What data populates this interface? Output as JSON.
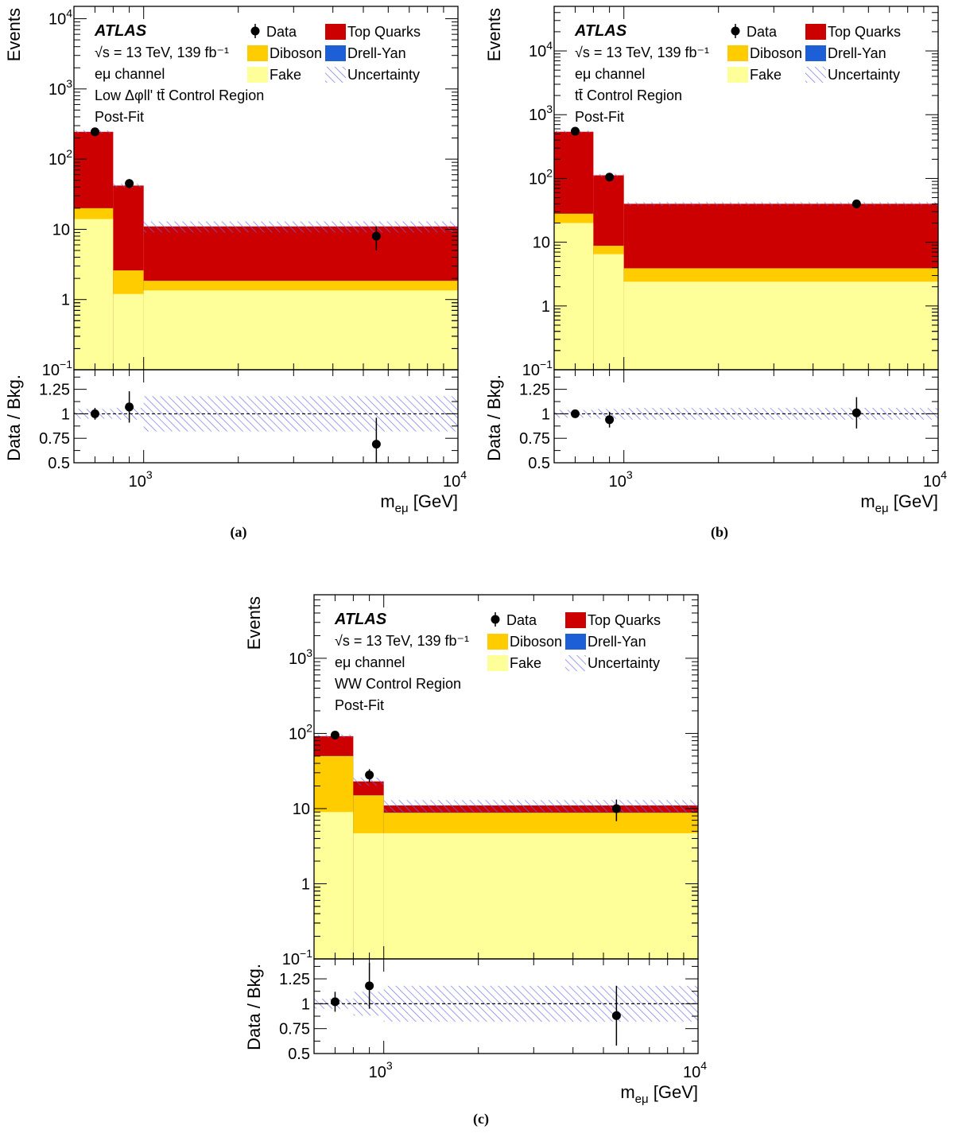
{
  "legend": {
    "data": "Data",
    "top": "Top Quarks",
    "diboson": "Diboson",
    "dy": "Drell-Yan",
    "fake": "Fake",
    "unc": "Uncertainty"
  },
  "colors": {
    "top": "#cc0000",
    "diboson": "#ffcc00",
    "dy": "#1c5fd6",
    "fake": "#ffff99",
    "hatch": "#6a6af0",
    "data": "#000000"
  },
  "chart_data": [
    {
      "type": "histogram",
      "caption": "(a)",
      "experiment": "ATLAS",
      "energy_lumi": "√s = 13 TeV, 139 fb⁻¹",
      "channel": "eμ channel",
      "region": "Low Δφll' tt̄ Control Region",
      "fit": "Post-Fit",
      "ylabel": "Events",
      "ratio_ylabel": "Data / Bkg.",
      "xlabel": "m_eμ [GeV]",
      "xscale": "log",
      "yscale": "log",
      "xlim": [
        600,
        10000
      ],
      "ylim": [
        0.1,
        15000
      ],
      "ratio_ylim": [
        0.5,
        1.45
      ],
      "bin_edges": [
        600,
        800,
        1000,
        10000
      ],
      "stack": {
        "fake": [
          14,
          1.2,
          1.35
        ],
        "diboson": [
          20,
          2.6,
          1.85
        ],
        "dy": [
          20,
          2.6,
          1.85
        ],
        "top": [
          245,
          42,
          11
        ]
      },
      "uncertainty_rel": [
        0.05,
        0.06,
        0.18
      ],
      "data": {
        "x": [
          700,
          900,
          5500
        ],
        "y": [
          245,
          45,
          8
        ],
        "yerr": [
          16,
          7,
          3
        ]
      },
      "ratio": {
        "values": [
          1.0,
          1.07,
          0.69
        ],
        "err": [
          0.06,
          0.16,
          0.27
        ]
      }
    },
    {
      "type": "histogram",
      "caption": "(b)",
      "experiment": "ATLAS",
      "energy_lumi": "√s = 13 TeV, 139 fb⁻¹",
      "channel": "eμ channel",
      "region": "tt̄ Control Region",
      "fit": "Post-Fit",
      "ylabel": "Events",
      "ratio_ylabel": "Data / Bkg.",
      "xlabel": "m_eμ [GeV]",
      "xscale": "log",
      "yscale": "log",
      "xlim": [
        600,
        10000
      ],
      "ylim": [
        0.1,
        50000
      ],
      "ratio_ylim": [
        0.5,
        1.45
      ],
      "bin_edges": [
        600,
        800,
        1000,
        10000
      ],
      "stack": {
        "fake": [
          20,
          6.5,
          2.4
        ],
        "diboson": [
          28,
          8.8,
          3.9
        ],
        "dy": [
          28,
          8.8,
          3.9
        ],
        "top": [
          540,
          112,
          40
        ]
      },
      "uncertainty_rel": [
        0.04,
        0.05,
        0.06
      ],
      "data": {
        "x": [
          700,
          900,
          5500
        ],
        "y": [
          550,
          105,
          40
        ],
        "yerr": [
          24,
          10,
          6
        ]
      },
      "ratio": {
        "values": [
          1.0,
          0.94,
          1.01
        ],
        "err": [
          0.03,
          0.08,
          0.16
        ]
      }
    },
    {
      "type": "histogram",
      "caption": "(c)",
      "experiment": "ATLAS",
      "energy_lumi": "√s = 13 TeV, 139 fb⁻¹",
      "channel": "eμ channel",
      "region": "WW Control Region",
      "fit": "Post-Fit",
      "ylabel": "Events",
      "ratio_ylabel": "Data / Bkg.",
      "xlabel": "m_eμ [GeV]",
      "xscale": "log",
      "yscale": "log",
      "xlim": [
        600,
        10000
      ],
      "ylim": [
        0.1,
        7000
      ],
      "ratio_ylim": [
        0.5,
        1.45
      ],
      "bin_edges": [
        600,
        800,
        1000,
        10000
      ],
      "stack": {
        "fake": [
          9,
          4.7,
          4.7
        ],
        "diboson": [
          50,
          15,
          8.8
        ],
        "dy": [
          50.3,
          15.1,
          8.9
        ],
        "top": [
          92,
          23,
          11
        ]
      },
      "uncertainty_rel": [
        0.05,
        0.12,
        0.18
      ],
      "data": {
        "x": [
          700,
          900,
          5500
        ],
        "y": [
          95,
          28,
          10
        ],
        "yerr": [
          10,
          5.5,
          3.2
        ]
      },
      "ratio": {
        "values": [
          1.02,
          1.18,
          0.88
        ],
        "err": [
          0.1,
          0.23,
          0.3
        ]
      }
    }
  ]
}
